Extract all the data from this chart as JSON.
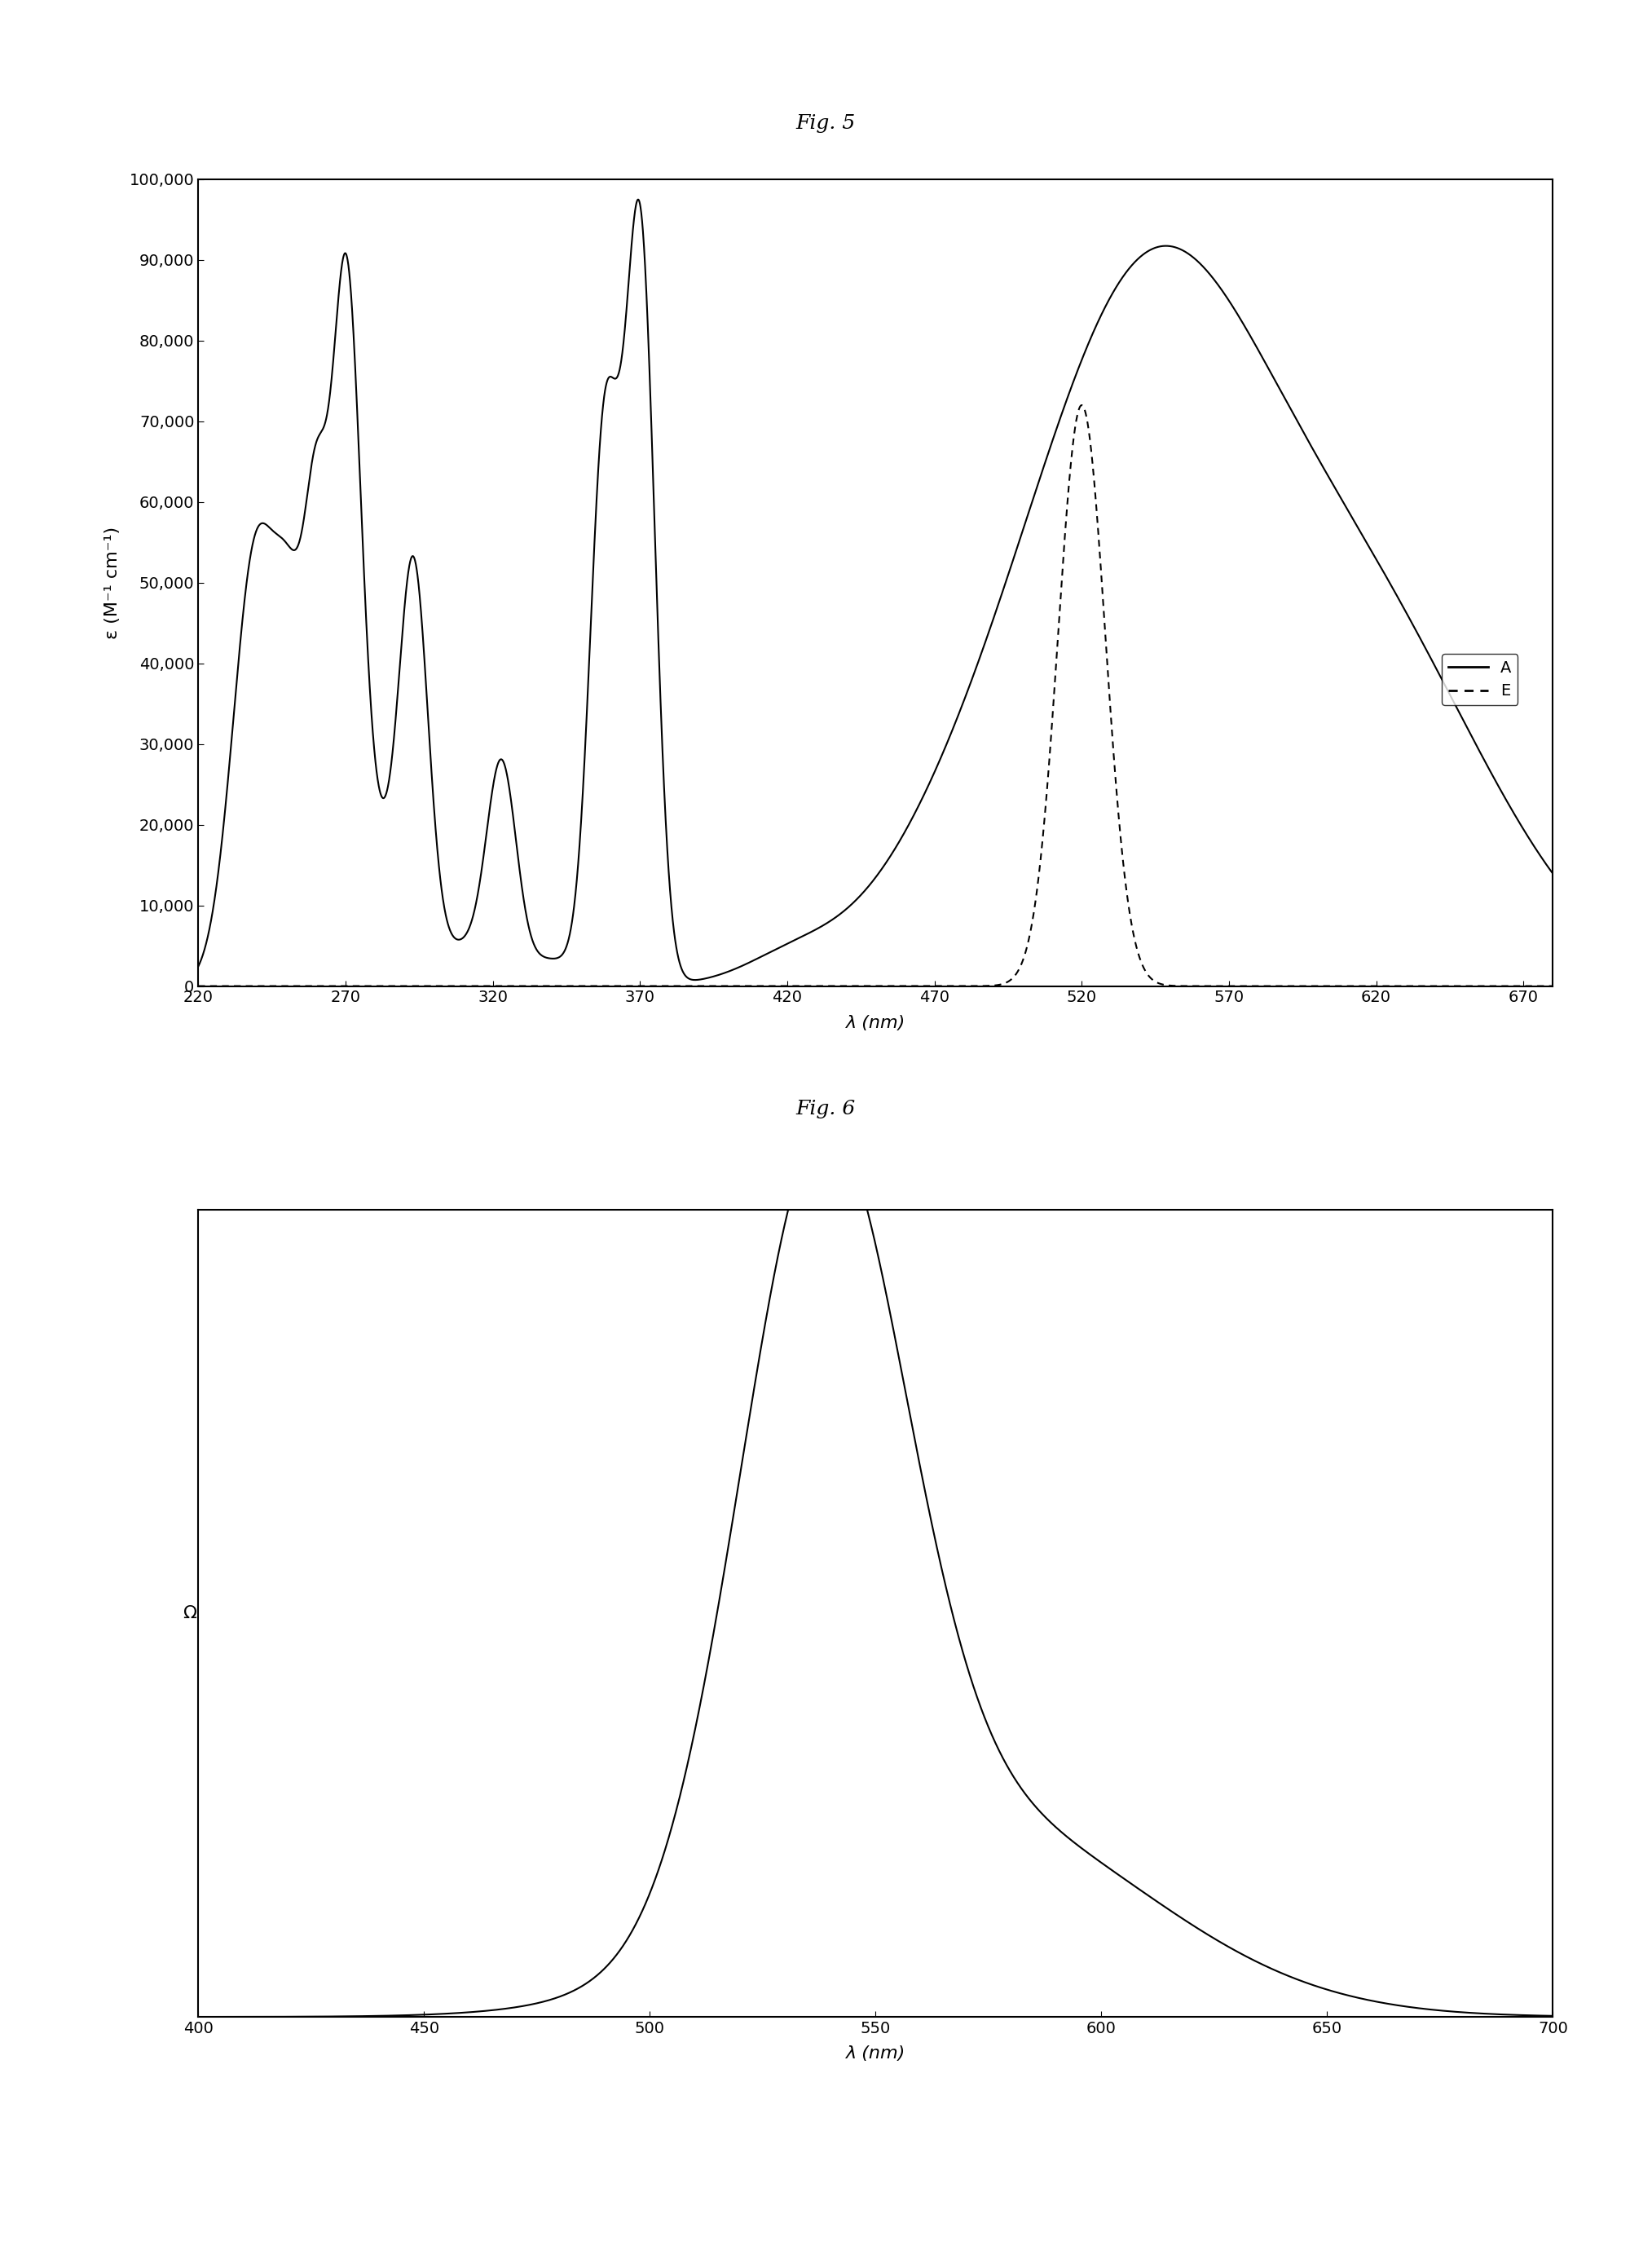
{
  "fig5_title": "Fig. 5",
  "fig6_title": "Fig. 6",
  "fig5_xlabel": "λ (nm)",
  "fig5_ylabel": "ε (M⁻¹ cm⁻¹)",
  "fig5_xlim": [
    220,
    680
  ],
  "fig5_ylim": [
    0,
    100000
  ],
  "fig5_xticks": [
    220,
    270,
    320,
    370,
    420,
    470,
    520,
    570,
    620,
    670
  ],
  "fig5_yticks": [
    0,
    10000,
    20000,
    30000,
    40000,
    50000,
    60000,
    70000,
    80000,
    90000,
    100000
  ],
  "fig6_xlabel": "λ (nm)",
  "fig6_ylabel": "Ω",
  "fig6_xlim": [
    400,
    700
  ],
  "fig6_ylim": [
    0,
    1.0
  ],
  "fig6_xticks": [
    400,
    450,
    500,
    550,
    600,
    650,
    700
  ],
  "background_color": "#ffffff",
  "line_color": "#000000",
  "title_fontsize": 18,
  "axis_fontsize": 16,
  "tick_fontsize": 14
}
